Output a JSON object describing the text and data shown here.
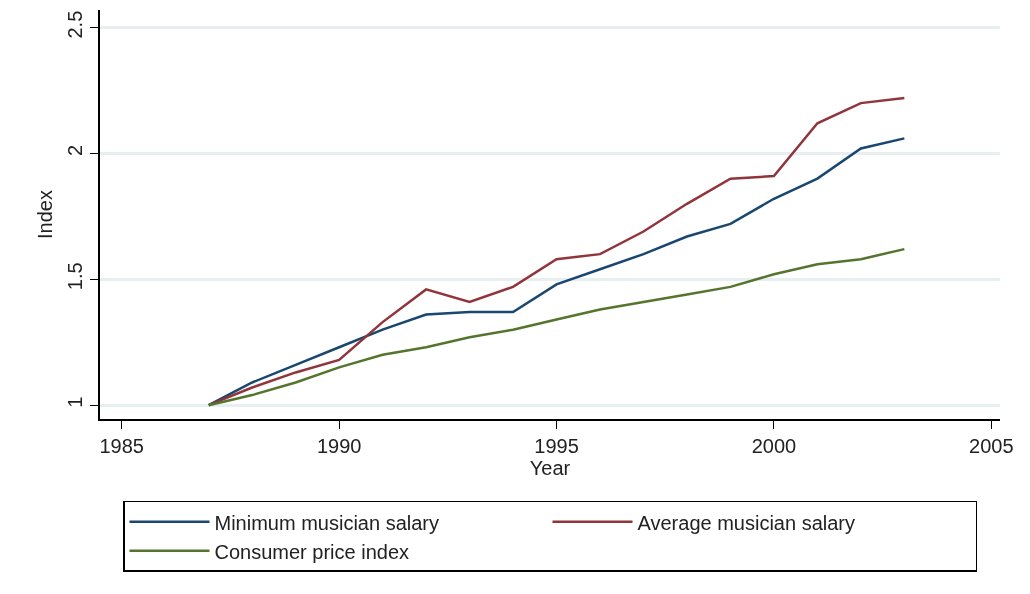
{
  "chart_data": {
    "type": "line",
    "xlabel": "Year",
    "ylabel": "Index",
    "x": [
      1987,
      1988,
      1989,
      1990,
      1991,
      1992,
      1993,
      1994,
      1995,
      1996,
      1997,
      1998,
      1999,
      2000,
      2001,
      2002,
      2003
    ],
    "series": [
      {
        "name": "Minimum musician salary",
        "color": "#1a476f",
        "values": [
          1.0,
          1.09,
          1.16,
          1.23,
          1.3,
          1.36,
          1.37,
          1.37,
          1.48,
          1.54,
          1.6,
          1.67,
          1.72,
          1.82,
          1.9,
          2.02,
          2.06
        ]
      },
      {
        "name": "Average musician salary",
        "color": "#90353b",
        "values": [
          1.0,
          1.07,
          1.13,
          1.18,
          1.33,
          1.46,
          1.41,
          1.47,
          1.58,
          1.6,
          1.69,
          1.8,
          1.9,
          1.91,
          2.12,
          2.2,
          2.22
        ]
      },
      {
        "name": "Consumer price index",
        "color": "#55752f",
        "values": [
          1.0,
          1.04,
          1.09,
          1.15,
          1.2,
          1.23,
          1.27,
          1.3,
          1.34,
          1.38,
          1.41,
          1.44,
          1.47,
          1.52,
          1.56,
          1.58,
          1.62
        ]
      }
    ],
    "xlim": [
      1984.5,
      2005.2
    ],
    "xticks": [
      1985,
      1990,
      1995,
      2000,
      2005
    ],
    "ylim": [
      0.945,
      2.57
    ],
    "yticks": [
      1,
      1.5,
      2,
      2.5
    ],
    "grid": "y",
    "legend": "bottom",
    "marker": "none",
    "line_style": "solid"
  }
}
